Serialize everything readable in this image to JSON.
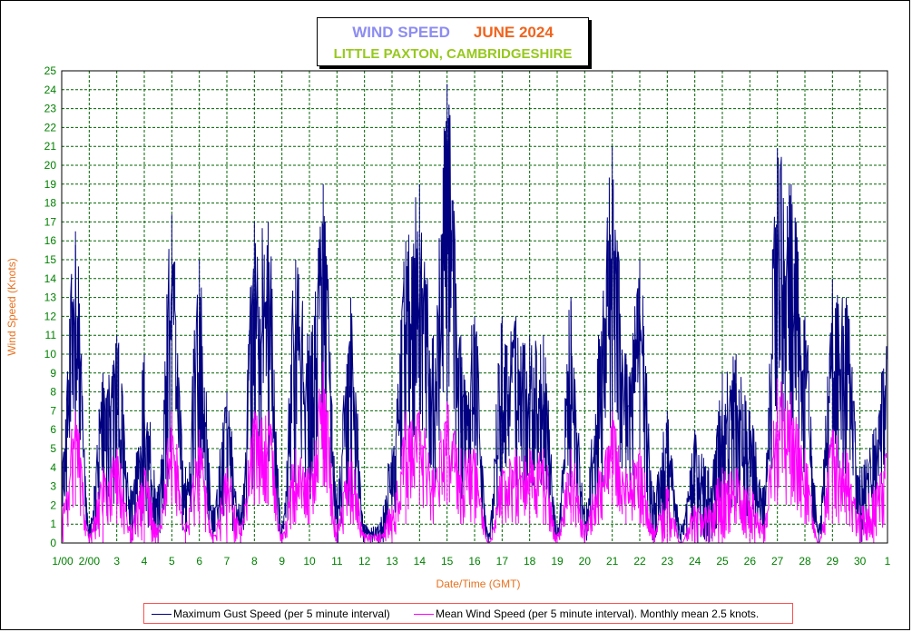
{
  "colors": {
    "gust": "#000080",
    "mean": "#ff00ff",
    "grid": "#006400",
    "tick_labels": "#008000",
    "axis_titles": "#e8701e"
  },
  "chart_data": {
    "type": "line",
    "title": "WIND SPEED",
    "title_month": "JUNE 2024",
    "subtitle": "LITTLE PAXTON, CAMBRIDGESHIRE",
    "xlabel": "Date/Time (GMT)",
    "ylabel": "Wind Speed (Knots)",
    "ylim": [
      0,
      25
    ],
    "y_ticks": [
      0,
      1,
      2,
      3,
      4,
      5,
      6,
      7,
      8,
      9,
      10,
      11,
      12,
      13,
      14,
      15,
      16,
      17,
      18,
      19,
      20,
      21,
      22,
      23,
      24,
      25
    ],
    "x_tick_labels": [
      "1/00",
      "2/00",
      "3",
      "4",
      "5",
      "6",
      "7",
      "8",
      "9",
      "10",
      "11",
      "12",
      "13",
      "14",
      "15",
      "16",
      "17",
      "18",
      "19",
      "20",
      "21",
      "22",
      "23",
      "24",
      "25",
      "26",
      "27",
      "28",
      "29",
      "30",
      "1"
    ],
    "grid": true,
    "legend_position": "bottom",
    "x_unit": "day of June 2024 (12-hour steps)",
    "x": [
      1.0,
      1.5,
      2.0,
      2.5,
      3.0,
      3.5,
      4.0,
      4.5,
      5.0,
      5.5,
      6.0,
      6.5,
      7.0,
      7.5,
      8.0,
      8.5,
      9.0,
      9.5,
      10.0,
      10.5,
      11.0,
      11.5,
      12.0,
      12.5,
      13.0,
      13.5,
      14.0,
      14.5,
      15.0,
      15.5,
      16.0,
      16.5,
      17.0,
      17.5,
      18.0,
      18.5,
      19.0,
      19.5,
      20.0,
      20.5,
      21.0,
      21.5,
      22.0,
      22.5,
      23.0,
      23.5,
      24.0,
      24.5,
      25.0,
      25.5,
      26.0,
      26.5,
      27.0,
      27.5,
      28.0,
      28.5,
      29.0,
      29.5,
      30.0,
      30.5,
      31.0
    ],
    "series": [
      {
        "name": "Maximum Gust Speed (per 5 minute interval)",
        "values": [
          5,
          16.5,
          1,
          9,
          11,
          3,
          10,
          3,
          17.4,
          4,
          15,
          2,
          8,
          2,
          17,
          17,
          1,
          15,
          11,
          19,
          3,
          13,
          1,
          1,
          5,
          16,
          19,
          11,
          24.3,
          11,
          12,
          0.5,
          12,
          12,
          11,
          11,
          1,
          13,
          2,
          11,
          21,
          10,
          15,
          3,
          7,
          1,
          6,
          4,
          9,
          10,
          7,
          3,
          20.9,
          19,
          12,
          1,
          14,
          13,
          4,
          6,
          11.3
        ],
        "min_values": [
          0,
          6,
          0,
          1,
          2,
          0,
          1,
          0,
          3,
          0,
          3,
          0,
          1,
          0,
          3,
          3,
          0,
          3,
          2,
          5,
          0,
          2,
          0,
          0,
          0,
          5,
          6,
          2,
          7,
          2,
          4,
          0,
          2,
          3,
          3,
          3,
          0,
          3,
          0,
          2,
          6,
          3,
          4,
          0,
          1,
          0,
          0,
          0,
          1,
          2,
          1,
          0,
          6,
          6,
          3,
          0,
          4,
          3,
          0,
          1,
          3
        ]
      },
      {
        "name": "Mean Wind Speed (per 5 minute interval). Monthly mean 2.5 knots.",
        "values": [
          2,
          7,
          0.5,
          4,
          5,
          1,
          4,
          1,
          7,
          1,
          6,
          0.5,
          4,
          1,
          7,
          7,
          0.5,
          5,
          4,
          9.6,
          1,
          5,
          0.5,
          0.5,
          2,
          7,
          7,
          4,
          7.5,
          5,
          5,
          0,
          4,
          5,
          5,
          5,
          0.5,
          5,
          1,
          4,
          7,
          4,
          5,
          1,
          3,
          0,
          2,
          2,
          4,
          4,
          3,
          1,
          8.7,
          8,
          5,
          0,
          6,
          5,
          2,
          3,
          5
        ],
        "min_values": [
          0,
          2,
          0,
          0,
          1,
          0,
          0,
          0,
          2,
          0,
          1,
          0,
          0,
          0,
          2,
          2,
          0,
          1,
          1,
          3,
          0,
          1,
          0,
          0,
          0,
          1,
          2,
          1,
          2,
          1,
          1,
          0,
          1,
          1,
          1,
          1,
          0,
          1,
          0,
          1,
          2,
          1,
          1,
          0,
          0,
          0,
          0,
          0,
          0,
          1,
          0,
          0,
          2,
          2,
          1,
          0,
          1,
          1,
          0,
          0,
          1
        ]
      }
    ]
  }
}
